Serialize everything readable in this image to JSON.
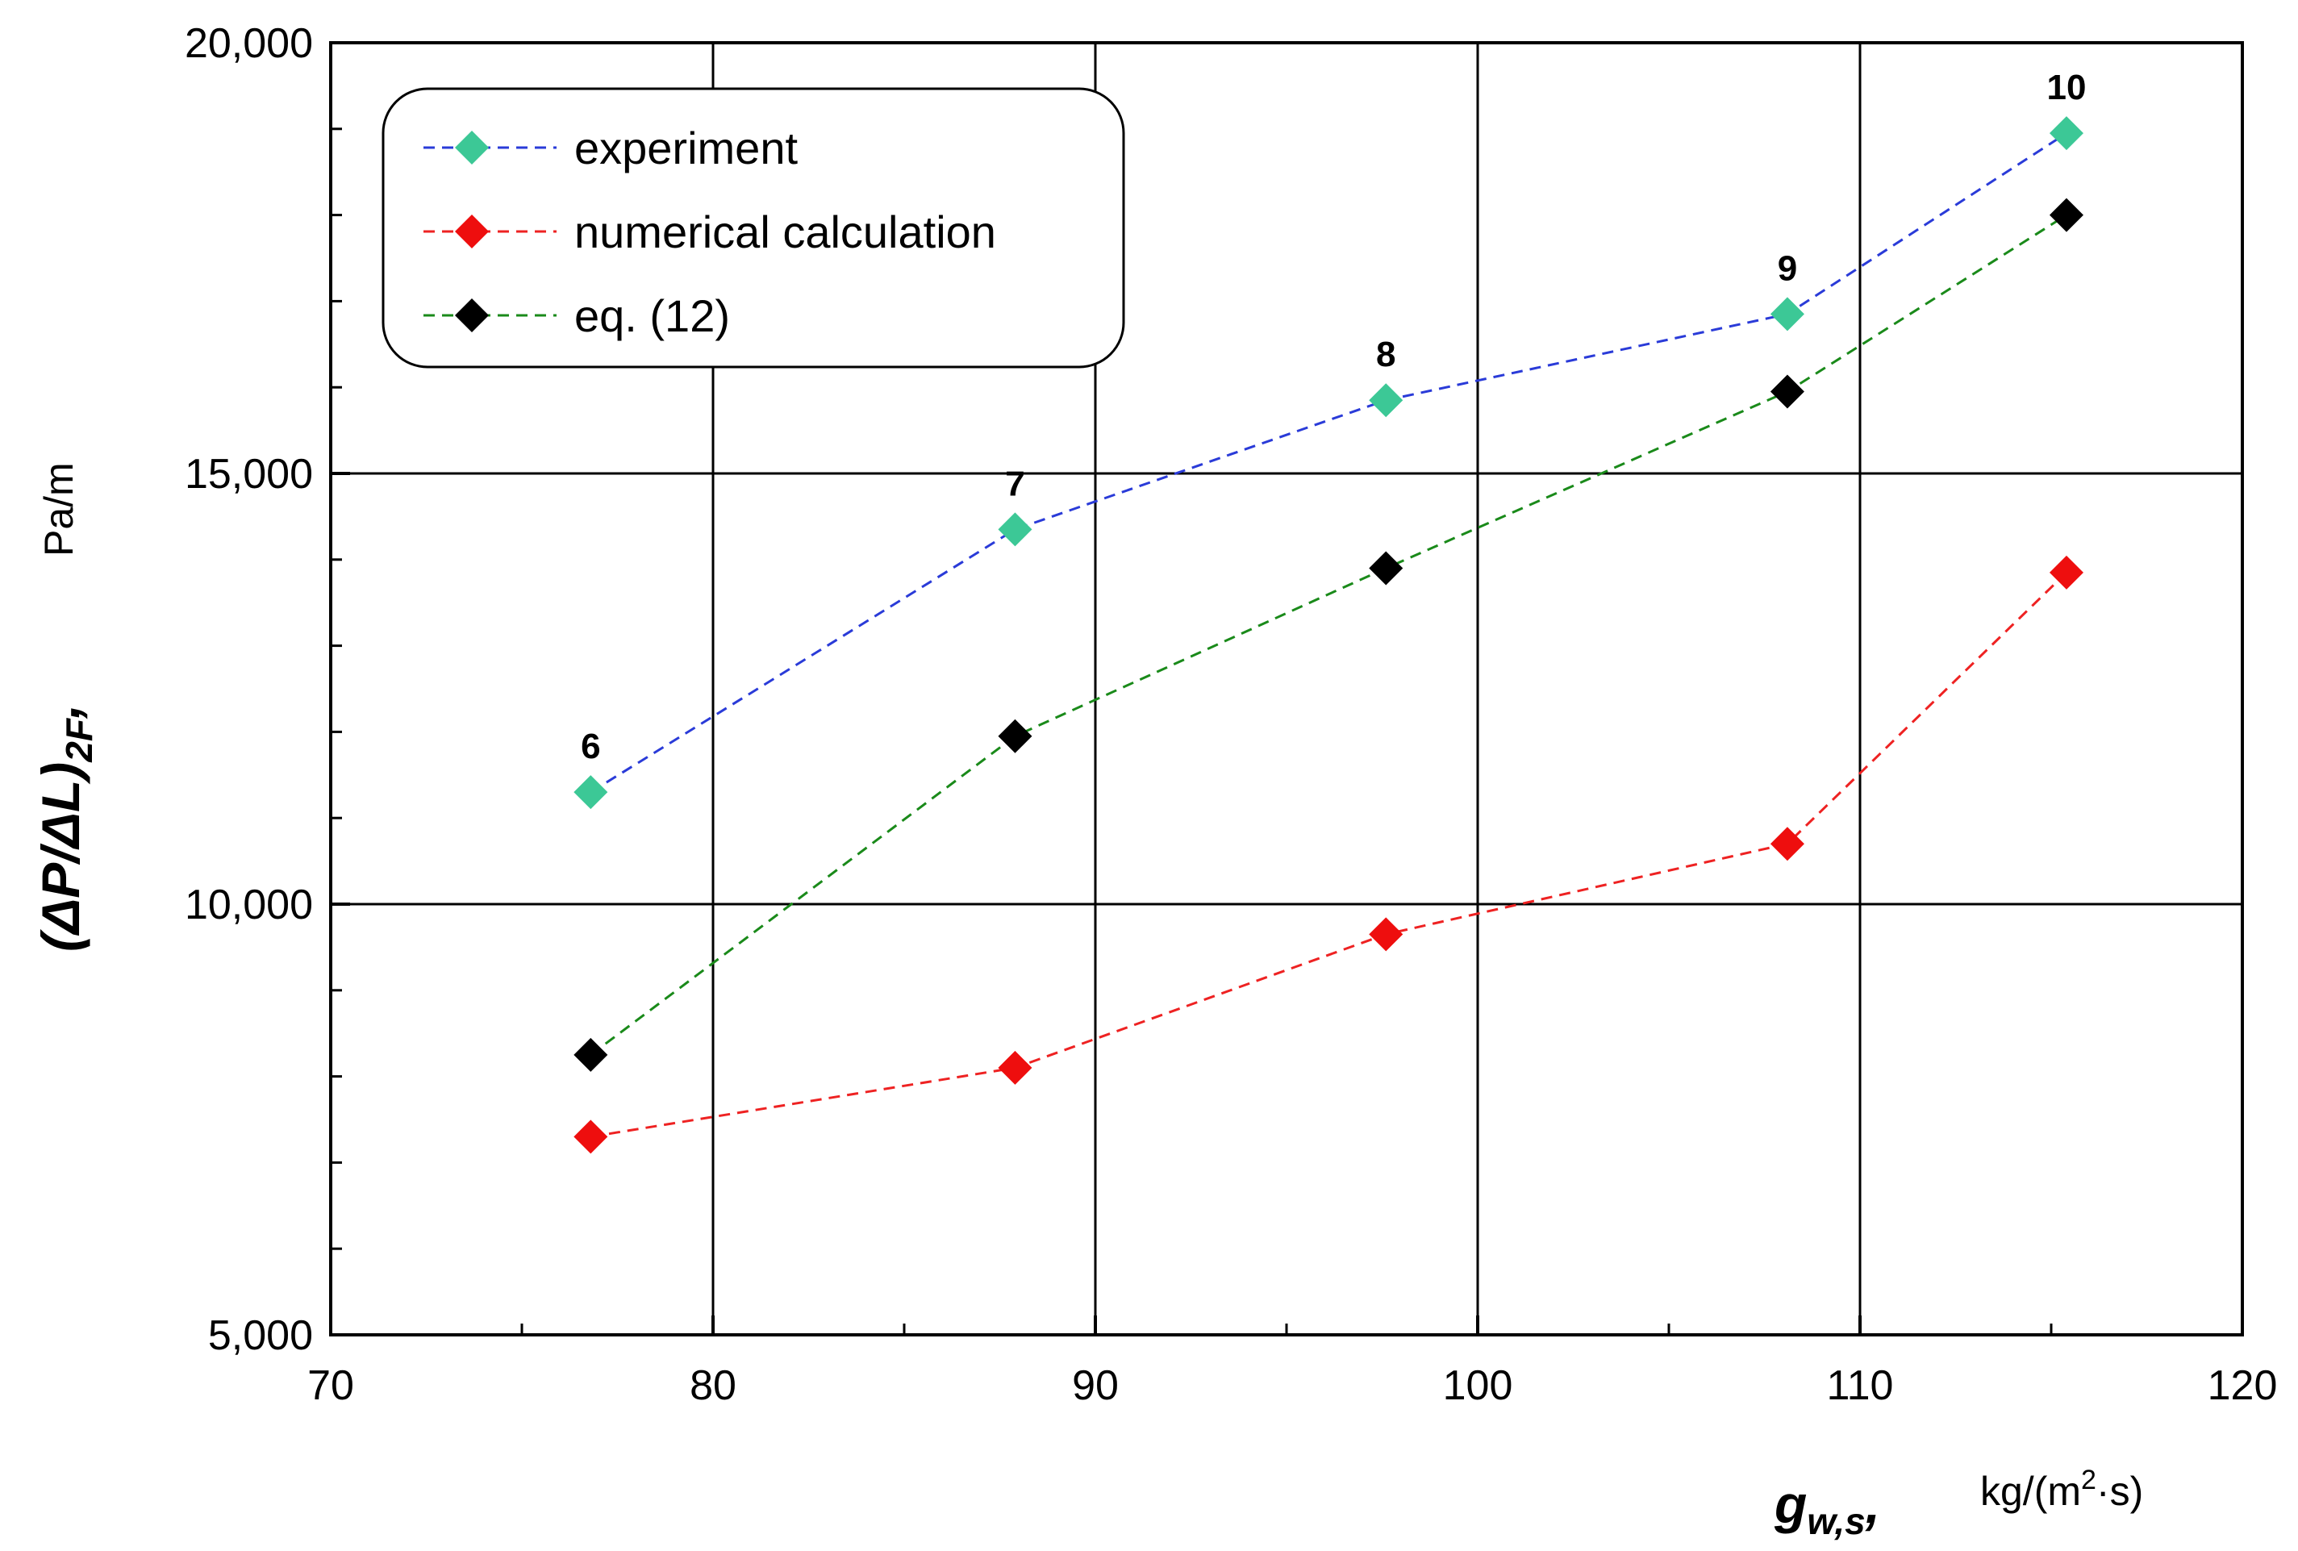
{
  "chart_data": {
    "type": "line",
    "title": "",
    "xlabel": {
      "symbol": "g",
      "subscript": "w,s",
      "separator": ",",
      "unit_pre": "kg/(m",
      "unit_sup": "2",
      "unit_post": "·s)"
    },
    "ylabel": {
      "symbol": "(ΔP/ΔL)",
      "subscript": "2F",
      "separator": ",",
      "unit": "Pa/m"
    },
    "xlim": [
      70,
      120
    ],
    "ylim": [
      5000,
      20000
    ],
    "xticks": [
      70,
      80,
      90,
      100,
      110,
      120
    ],
    "xtick_labels": [
      "70",
      "80",
      "90",
      "100",
      "110",
      "120"
    ],
    "xminor": [
      75,
      85,
      95,
      105,
      115
    ],
    "yticks": [
      5000,
      10000,
      15000,
      20000
    ],
    "ytick_labels": [
      "5,000",
      "10,000",
      "15,000",
      "20,000"
    ],
    "yminor": [
      6000,
      7000,
      8000,
      9000,
      11000,
      12000,
      13000,
      14000,
      16000,
      17000,
      18000,
      19000
    ],
    "grid": true,
    "x": [
      76.8,
      87.9,
      97.6,
      108.1,
      115.4
    ],
    "series": [
      {
        "name": "experiment",
        "color": "#3cc896",
        "line_color": "#2a3bd8",
        "values": [
          11300,
          14350,
          15850,
          16850,
          18950
        ]
      },
      {
        "name": "numerical calculation",
        "color": "#ee0e0e",
        "line_color": "#ee2222",
        "values": [
          7300,
          8100,
          9650,
          10700,
          13850
        ]
      },
      {
        "name": "eq. (12)",
        "color": "#000000",
        "line_color": "#1a8a1a",
        "values": [
          8250,
          11950,
          13900,
          15950,
          18000
        ]
      }
    ],
    "point_labels": [
      "6",
      "7",
      "8",
      "9",
      "10"
    ],
    "legend_position": "top-left"
  }
}
